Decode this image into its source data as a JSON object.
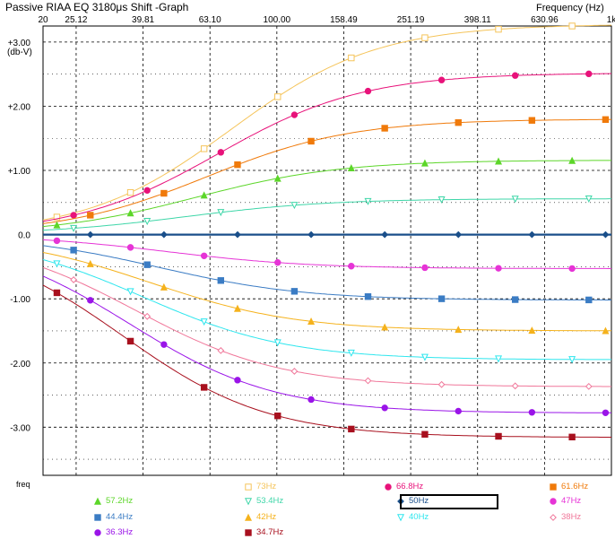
{
  "window": {
    "title": "Passive RIAA EQ 3180μs Shift -Graph",
    "x_unit_header": "Frequency   (Hz)"
  },
  "chart_data": {
    "type": "line",
    "title": "Passive RIAA EQ 3180μs Shift -Graph",
    "xlabel": "freq",
    "ylabel": "(db-V)",
    "x_unit": "Frequency   (Hz)",
    "x_scale": "log",
    "xlim": [
      20,
      1000
    ],
    "ylim": [
      -3.75,
      3.25
    ],
    "grid": true,
    "legend_position": "bottom",
    "x_ticks": [
      {
        "value": 20,
        "label": "20"
      },
      {
        "value": 25.12,
        "label": "25.12"
      },
      {
        "value": 39.81,
        "label": "39.81"
      },
      {
        "value": 63.1,
        "label": "63.10"
      },
      {
        "value": 100,
        "label": "100.00"
      },
      {
        "value": 158.49,
        "label": "158.49"
      },
      {
        "value": 251.19,
        "label": "251.19"
      },
      {
        "value": 398.11,
        "label": "398.11"
      },
      {
        "value": 630.96,
        "label": "630.96"
      },
      {
        "value": 1000,
        "label": "1k"
      }
    ],
    "y_ticks": [
      {
        "value": 3,
        "label": "+3.00"
      },
      {
        "value": 2,
        "label": "+2.00"
      },
      {
        "value": 1,
        "label": "+1.00"
      },
      {
        "value": 0,
        "label": "0.0"
      },
      {
        "value": -1,
        "label": "-1.00"
      },
      {
        "value": -2,
        "label": "-2.00"
      },
      {
        "value": -3,
        "label": "-3.00"
      }
    ],
    "series": [
      {
        "name": "73Hz",
        "color": "#f5c45a",
        "marker": "square-open",
        "fc": 73,
        "gain": 3.28
      },
      {
        "name": "66.8Hz",
        "color": "#e8127a",
        "marker": "circle",
        "fc": 66.8,
        "gain": 2.52
      },
      {
        "name": "61.6Hz",
        "color": "#f07a0a",
        "marker": "square",
        "fc": 61.6,
        "gain": 1.8
      },
      {
        "name": "57.2Hz",
        "color": "#5cd629",
        "marker": "triangle",
        "fc": 57.2,
        "gain": 1.16
      },
      {
        "name": "53.4Hz",
        "color": "#3ed6a8",
        "marker": "triangle-down-open",
        "fc": 53.4,
        "gain": 0.56
      },
      {
        "name": "50Hz",
        "color": "#1a4f8a",
        "marker": "diamond",
        "fc": 50,
        "gain": 0
      },
      {
        "name": "47Hz",
        "color": "#e634d6",
        "marker": "circle",
        "fc": 47,
        "gain": -0.53
      },
      {
        "name": "44.4Hz",
        "color": "#3b7cc4",
        "marker": "square",
        "fc": 44.4,
        "gain": -1.02
      },
      {
        "name": "42Hz",
        "color": "#f5b21c",
        "marker": "triangle",
        "fc": 42,
        "gain": -1.5
      },
      {
        "name": "40Hz",
        "color": "#2ee6ee",
        "marker": "triangle-down-open",
        "fc": 40,
        "gain": -1.95
      },
      {
        "name": "38Hz",
        "color": "#f0779a",
        "marker": "diamond-open",
        "fc": 38,
        "gain": -2.37
      },
      {
        "name": "36.3Hz",
        "color": "#9a14e8",
        "marker": "circle",
        "fc": 36.3,
        "gain": -2.78
      },
      {
        "name": "34.7Hz",
        "color": "#a8101e",
        "marker": "square",
        "fc": 34.7,
        "gain": -3.16
      }
    ]
  }
}
